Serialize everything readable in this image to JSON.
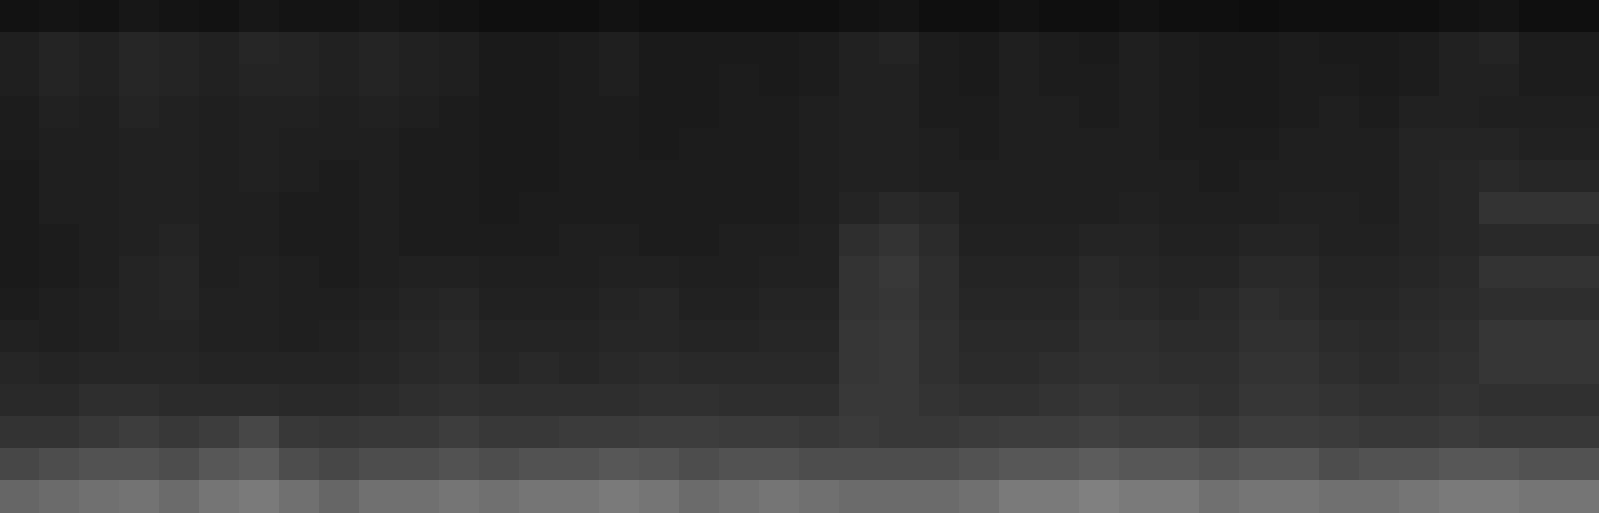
{
  "chart_data": {
    "type": "heatmap",
    "tick_labels": false,
    "color": "#ffffff",
    "zlim": [
      0,
      100
    ],
    "values": [
      [
        7,
        8,
        7,
        9,
        8,
        7,
        9,
        8,
        8,
        9,
        8,
        7,
        6,
        6,
        6,
        7,
        6,
        6,
        6,
        6,
        6,
        7,
        8,
        6,
        6,
        7,
        6,
        6,
        7,
        6,
        6,
        5,
        6,
        6,
        6,
        6,
        7,
        8,
        6,
        6
      ],
      [
        12,
        14,
        13,
        15,
        14,
        13,
        15,
        14,
        13,
        14,
        13,
        12,
        10,
        10,
        11,
        12,
        10,
        10,
        10,
        10,
        11,
        13,
        14,
        11,
        10,
        12,
        11,
        10,
        12,
        11,
        10,
        10,
        11,
        10,
        10,
        11,
        13,
        14,
        11,
        11
      ],
      [
        12,
        14,
        13,
        15,
        14,
        13,
        14,
        14,
        13,
        14,
        13,
        12,
        10,
        10,
        11,
        12,
        10,
        10,
        11,
        10,
        11,
        13,
        13,
        11,
        10,
        12,
        11,
        11,
        12,
        11,
        10,
        10,
        11,
        11,
        10,
        11,
        13,
        13,
        11,
        11
      ],
      [
        11,
        13,
        12,
        14,
        13,
        12,
        13,
        13,
        12,
        13,
        12,
        11,
        10,
        10,
        11,
        11,
        10,
        10,
        11,
        11,
        12,
        13,
        13,
        11,
        11,
        12,
        12,
        11,
        12,
        11,
        10,
        10,
        11,
        12,
        11,
        13,
        13,
        12,
        12,
        12
      ],
      [
        11,
        12,
        12,
        13,
        13,
        12,
        13,
        12,
        12,
        12,
        11,
        11,
        10,
        10,
        11,
        11,
        10,
        11,
        11,
        11,
        12,
        13,
        13,
        12,
        11,
        12,
        12,
        12,
        12,
        11,
        11,
        11,
        12,
        12,
        12,
        14,
        14,
        14,
        13,
        13
      ],
      [
        10,
        12,
        12,
        13,
        13,
        12,
        13,
        12,
        11,
        12,
        11,
        11,
        10,
        10,
        11,
        11,
        11,
        11,
        11,
        11,
        12,
        13,
        13,
        12,
        12,
        12,
        12,
        12,
        12,
        12,
        11,
        12,
        12,
        12,
        12,
        14,
        15,
        16,
        15,
        15
      ],
      [
        10,
        12,
        12,
        13,
        13,
        12,
        12,
        11,
        11,
        12,
        11,
        11,
        10,
        11,
        11,
        11,
        11,
        11,
        11,
        11,
        12,
        14,
        16,
        15,
        12,
        12,
        12,
        12,
        13,
        12,
        12,
        12,
        13,
        13,
        12,
        14,
        15,
        20,
        20,
        20
      ],
      [
        10,
        11,
        12,
        13,
        14,
        12,
        12,
        11,
        11,
        12,
        11,
        11,
        11,
        11,
        12,
        12,
        11,
        11,
        12,
        12,
        13,
        18,
        20,
        17,
        13,
        13,
        13,
        14,
        14,
        13,
        13,
        14,
        14,
        13,
        13,
        14,
        15,
        16,
        16,
        16
      ],
      [
        10,
        11,
        12,
        14,
        15,
        12,
        13,
        12,
        11,
        12,
        13,
        13,
        12,
        12,
        12,
        13,
        13,
        12,
        12,
        13,
        13,
        20,
        22,
        18,
        14,
        14,
        14,
        16,
        15,
        14,
        14,
        16,
        16,
        14,
        14,
        15,
        16,
        20,
        20,
        20
      ],
      [
        11,
        12,
        13,
        14,
        15,
        13,
        13,
        12,
        12,
        13,
        14,
        15,
        13,
        13,
        13,
        14,
        15,
        13,
        13,
        14,
        14,
        20,
        21,
        18,
        15,
        15,
        15,
        17,
        16,
        15,
        16,
        18,
        17,
        15,
        15,
        16,
        17,
        18,
        18,
        18
      ],
      [
        13,
        12,
        13,
        14,
        14,
        13,
        13,
        12,
        13,
        14,
        15,
        16,
        14,
        14,
        14,
        15,
        15,
        14,
        14,
        15,
        15,
        21,
        22,
        19,
        16,
        16,
        16,
        18,
        18,
        17,
        17,
        19,
        19,
        17,
        16,
        17,
        18,
        21,
        21,
        21
      ],
      [
        15,
        14,
        15,
        15,
        15,
        14,
        14,
        14,
        14,
        15,
        16,
        17,
        15,
        16,
        15,
        16,
        17,
        16,
        16,
        16,
        16,
        21,
        22,
        19,
        17,
        17,
        18,
        19,
        19,
        18,
        18,
        20,
        20,
        18,
        17,
        18,
        19,
        21,
        21,
        21
      ],
      [
        16,
        16,
        18,
        18,
        17,
        17,
        17,
        16,
        16,
        17,
        18,
        19,
        18,
        18,
        18,
        18,
        19,
        19,
        18,
        18,
        18,
        22,
        22,
        20,
        19,
        19,
        20,
        21,
        20,
        20,
        19,
        21,
        21,
        20,
        19,
        19,
        20,
        19,
        19,
        19
      ],
      [
        20,
        20,
        22,
        24,
        22,
        24,
        28,
        22,
        21,
        22,
        22,
        24,
        22,
        22,
        23,
        23,
        24,
        24,
        23,
        23,
        22,
        23,
        22,
        22,
        23,
        24,
        24,
        25,
        24,
        24,
        22,
        24,
        24,
        23,
        22,
        22,
        23,
        22,
        22,
        22
      ],
      [
        28,
        30,
        32,
        32,
        30,
        34,
        36,
        30,
        28,
        30,
        30,
        32,
        30,
        32,
        32,
        34,
        33,
        30,
        32,
        32,
        30,
        30,
        30,
        30,
        32,
        34,
        34,
        36,
        34,
        34,
        32,
        34,
        34,
        30,
        32,
        32,
        34,
        34,
        32,
        32
      ],
      [
        40,
        42,
        44,
        45,
        42,
        46,
        48,
        44,
        40,
        44,
        44,
        46,
        44,
        46,
        46,
        48,
        46,
        42,
        44,
        46,
        44,
        42,
        42,
        42,
        44,
        48,
        48,
        50,
        48,
        48,
        44,
        46,
        46,
        44,
        44,
        46,
        48,
        48,
        46,
        46
      ]
    ]
  }
}
